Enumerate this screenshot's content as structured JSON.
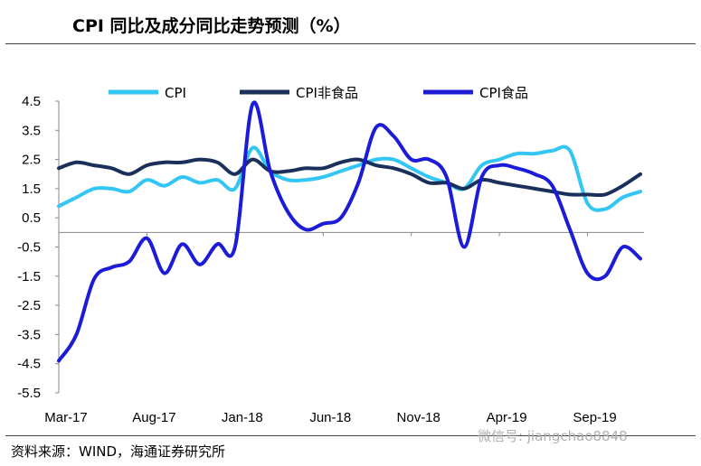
{
  "title": "CPI 同比及成分同比走势预测（%）",
  "source": "资料来源：WIND，海通证券研究所",
  "watermark": "微信号: jiangchao8848",
  "chart_data": {
    "type": "line",
    "title": "CPI 同比及成分同比走势预测（%）",
    "xlabel": "",
    "ylabel": "",
    "ylim": [
      -5.5,
      4.5
    ],
    "yticks": [
      "4.5",
      "3.5",
      "2.5",
      "1.5",
      "0.5",
      "-0.5",
      "-1.5",
      "-2.5",
      "-3.5",
      "-4.5",
      "-5.5"
    ],
    "x_tick_labels": [
      "Mar-17",
      "Aug-17",
      "Jan-18",
      "Jun-18",
      "Nov-18",
      "Apr-19",
      "Sep-19"
    ],
    "x": [
      "Mar-17",
      "Apr-17",
      "May-17",
      "Jun-17",
      "Jul-17",
      "Aug-17",
      "Sep-17",
      "Oct-17",
      "Nov-17",
      "Dec-17",
      "Jan-18",
      "Feb-18",
      "Mar-18",
      "Apr-18",
      "May-18",
      "Jun-18",
      "Jul-18",
      "Aug-18",
      "Sep-18",
      "Oct-18",
      "Nov-18",
      "Dec-18",
      "Jan-19",
      "Feb-19",
      "Mar-19",
      "Apr-19",
      "May-19",
      "Jun-19",
      "Jul-19",
      "Aug-19",
      "Sep-19",
      "Oct-19",
      "Nov-19",
      "Dec-19"
    ],
    "grid": false,
    "legend": "top",
    "series": [
      {
        "name": "CPI",
        "color": "#33c6f4",
        "values": [
          0.9,
          1.2,
          1.5,
          1.5,
          1.4,
          1.8,
          1.6,
          1.9,
          1.7,
          1.8,
          1.5,
          2.9,
          2.1,
          1.8,
          1.8,
          1.9,
          2.1,
          2.3,
          2.5,
          2.5,
          2.2,
          1.9,
          1.7,
          1.5,
          2.3,
          2.5,
          2.7,
          2.7,
          2.8,
          2.8,
          1.0,
          0.8,
          1.2,
          1.4
        ]
      },
      {
        "name": "CPI非食品",
        "color": "#1a2f5a",
        "values": [
          2.2,
          2.4,
          2.3,
          2.2,
          2.0,
          2.3,
          2.4,
          2.4,
          2.5,
          2.4,
          2.0,
          2.5,
          2.1,
          2.1,
          2.2,
          2.2,
          2.4,
          2.5,
          2.3,
          2.2,
          2.0,
          1.7,
          1.7,
          1.5,
          1.8,
          1.7,
          1.6,
          1.5,
          1.4,
          1.3,
          1.3,
          1.3,
          1.6,
          2.0
        ]
      },
      {
        "name": "CPI食品",
        "color": "#1c1cd8",
        "values": [
          -4.4,
          -3.5,
          -1.6,
          -1.2,
          -1.0,
          -0.2,
          -1.4,
          -0.4,
          -1.1,
          -0.4,
          -0.5,
          4.4,
          2.1,
          0.7,
          0.1,
          0.3,
          0.5,
          1.7,
          3.6,
          3.3,
          2.5,
          2.5,
          1.9,
          -0.5,
          1.9,
          2.3,
          2.2,
          2.0,
          1.6,
          0.1,
          -1.4,
          -1.5,
          -0.5,
          -0.9
        ]
      }
    ]
  }
}
